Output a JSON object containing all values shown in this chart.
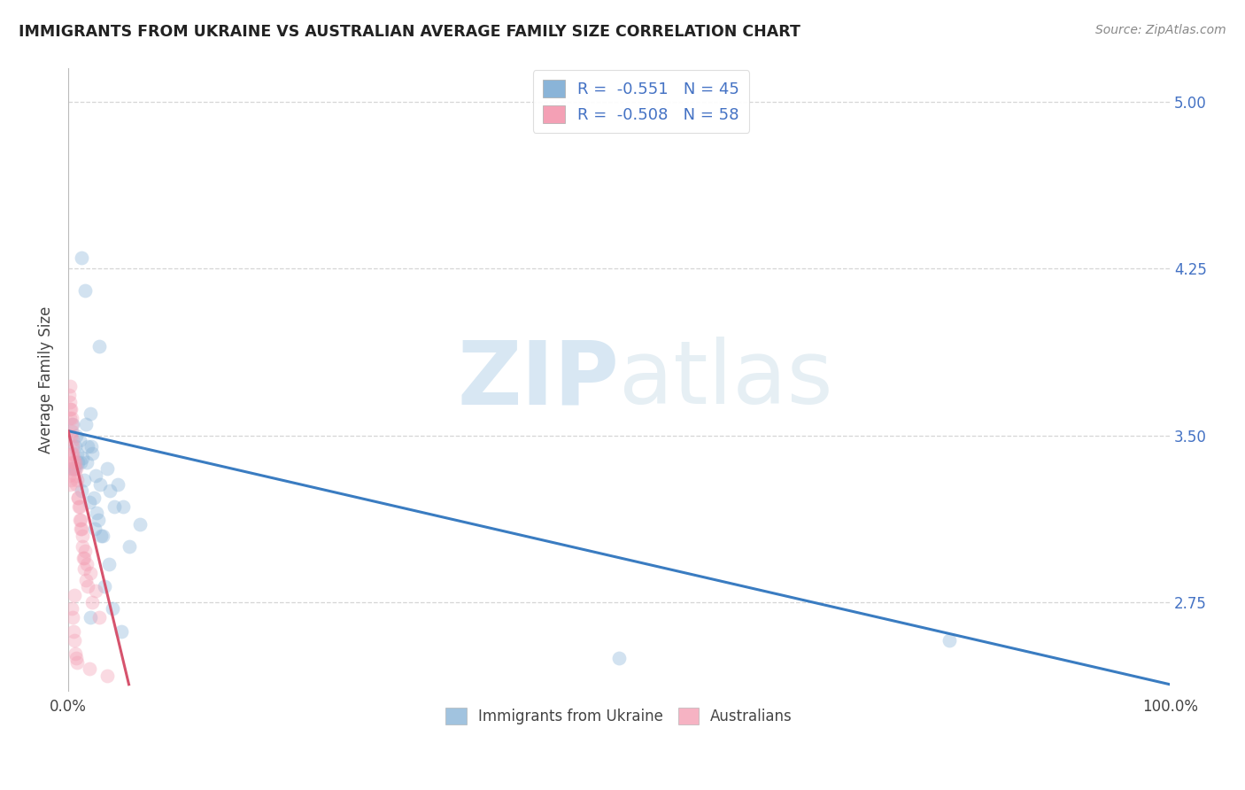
{
  "title": "IMMIGRANTS FROM UKRAINE VS AUSTRALIAN AVERAGE FAMILY SIZE CORRELATION CHART",
  "source": "Source: ZipAtlas.com",
  "ylabel": "Average Family Size",
  "xlim": [
    0,
    100
  ],
  "ylim": [
    2.35,
    5.15
  ],
  "yticks_right": [
    2.75,
    3.5,
    4.25,
    5.0
  ],
  "blue_color": "#8ab4d8",
  "blue_line_color": "#3a7cc1",
  "pink_color": "#f4a0b5",
  "pink_line_color": "#d6536d",
  "blue_scatter": {
    "x": [
      1.2,
      1.5,
      2.8,
      0.4,
      0.7,
      1.0,
      1.8,
      2.2,
      3.5,
      0.5,
      0.9,
      1.3,
      1.6,
      2.0,
      2.5,
      0.6,
      1.1,
      1.4,
      2.1,
      2.9,
      3.8,
      0.8,
      1.7,
      2.3,
      2.6,
      3.1,
      4.5,
      0.3,
      1.9,
      2.7,
      3.3,
      4.0,
      5.0,
      3.0,
      2.4,
      1.2,
      5.5,
      6.5,
      3.7,
      4.2,
      50.0,
      80.0,
      0.6,
      4.8,
      2.0
    ],
    "y": [
      4.3,
      4.15,
      3.9,
      3.55,
      3.5,
      3.48,
      3.45,
      3.42,
      3.35,
      3.35,
      3.38,
      3.4,
      3.55,
      3.6,
      3.32,
      3.45,
      3.38,
      3.3,
      3.45,
      3.28,
      3.25,
      3.42,
      3.38,
      3.22,
      3.15,
      3.05,
      3.28,
      3.35,
      3.2,
      3.12,
      2.82,
      2.72,
      3.18,
      3.05,
      3.08,
      3.25,
      3.0,
      3.1,
      2.92,
      3.18,
      2.5,
      2.58,
      3.35,
      2.62,
      2.68
    ]
  },
  "pink_scatter": {
    "x": [
      0.1,
      0.15,
      0.2,
      0.25,
      0.3,
      0.35,
      0.4,
      0.5,
      0.6,
      0.7,
      0.8,
      0.9,
      1.0,
      1.1,
      1.2,
      1.3,
      1.5,
      1.7,
      2.0,
      2.5,
      0.12,
      0.18,
      0.22,
      0.28,
      0.32,
      0.38,
      0.42,
      0.48,
      0.55,
      0.65,
      0.75,
      0.85,
      0.95,
      1.05,
      1.15,
      1.25,
      1.35,
      1.45,
      1.6,
      1.8,
      2.2,
      0.08,
      0.13,
      0.19,
      0.23,
      0.29,
      0.33,
      0.39,
      0.45,
      0.52,
      0.62,
      0.72,
      0.82,
      1.4,
      2.8,
      1.9,
      0.58,
      3.5
    ],
    "y": [
      3.32,
      3.28,
      3.3,
      3.35,
      3.38,
      3.42,
      3.45,
      3.4,
      3.38,
      3.35,
      3.3,
      3.22,
      3.18,
      3.12,
      3.08,
      3.05,
      2.98,
      2.92,
      2.88,
      2.8,
      3.62,
      3.58,
      3.5,
      3.52,
      3.55,
      3.48,
      3.42,
      3.38,
      3.35,
      3.32,
      3.28,
      3.22,
      3.18,
      3.12,
      3.08,
      3.0,
      2.95,
      2.9,
      2.85,
      2.82,
      2.75,
      3.68,
      3.72,
      3.65,
      3.62,
      3.58,
      2.72,
      2.68,
      2.62,
      2.58,
      2.52,
      2.5,
      2.48,
      2.95,
      2.68,
      2.45,
      2.78,
      2.42
    ]
  },
  "blue_line": {
    "x0": 0,
    "x1": 100,
    "y0": 3.52,
    "y1": 2.38
  },
  "pink_line": {
    "x0": 0.0,
    "x1": 5.5,
    "y0": 3.52,
    "y1": 2.38
  },
  "legend_R_blue": "R =  -0.551",
  "legend_N_blue": "N = 45",
  "legend_R_pink": "R =  -0.508",
  "legend_N_pink": "N = 58",
  "legend_label_blue": "Immigrants from Ukraine",
  "legend_label_pink": "Australians",
  "watermark_zip": "ZIP",
  "watermark_atlas": "atlas",
  "background_color": "#ffffff",
  "grid_color": "#cccccc",
  "right_tick_color": "#4472c4",
  "title_color": "#222222",
  "marker_size": 130,
  "marker_alpha": 0.38
}
